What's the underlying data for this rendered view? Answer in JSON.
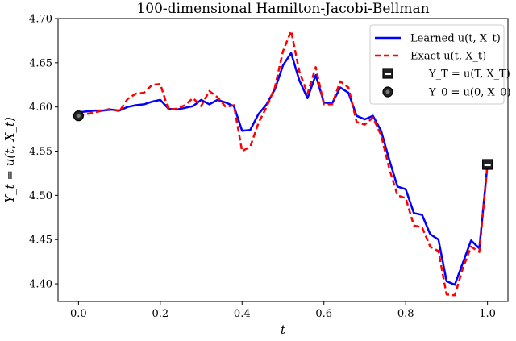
{
  "chart_data": {
    "type": "line",
    "title": "100-dimensional Hamilton-Jacobi-Bellman",
    "xlabel": "t",
    "ylabel": "Y_t = u(t, X_t)",
    "xlim": [
      -0.05,
      1.05
    ],
    "ylim": [
      4.38,
      4.7
    ],
    "xticks": [
      0.0,
      0.2,
      0.4,
      0.6,
      0.8,
      1.0
    ],
    "xtick_labels": [
      "0.0",
      "0.2",
      "0.4",
      "0.6",
      "0.8",
      "1.0"
    ],
    "yticks": [
      4.4,
      4.45,
      4.5,
      4.55,
      4.6,
      4.65,
      4.7
    ],
    "ytick_labels": [
      "4.40",
      "4.45",
      "4.50",
      "4.55",
      "4.60",
      "4.65",
      "4.70"
    ],
    "grid": false,
    "legend_position": "top-right",
    "series": [
      {
        "name": "Learned u(t, X_t)",
        "style": "solid",
        "color": "#0000ff",
        "x": [
          0.0,
          0.02,
          0.04,
          0.06,
          0.08,
          0.1,
          0.12,
          0.14,
          0.16,
          0.18,
          0.2,
          0.22,
          0.24,
          0.26,
          0.28,
          0.3,
          0.32,
          0.34,
          0.36,
          0.38,
          0.4,
          0.42,
          0.44,
          0.46,
          0.48,
          0.5,
          0.52,
          0.54,
          0.56,
          0.58,
          0.6,
          0.62,
          0.64,
          0.66,
          0.68,
          0.7,
          0.72,
          0.74,
          0.76,
          0.78,
          0.8,
          0.82,
          0.84,
          0.86,
          0.88,
          0.9,
          0.92,
          0.94,
          0.96,
          0.98,
          1.0
        ],
        "values": [
          4.594,
          4.595,
          4.596,
          4.596,
          4.597,
          4.596,
          4.6,
          4.602,
          4.603,
          4.606,
          4.608,
          4.598,
          4.597,
          4.599,
          4.601,
          4.608,
          4.603,
          4.608,
          4.605,
          4.601,
          4.573,
          4.574,
          4.592,
          4.603,
          4.62,
          4.647,
          4.661,
          4.63,
          4.61,
          4.636,
          4.605,
          4.604,
          4.622,
          4.616,
          4.59,
          4.586,
          4.59,
          4.573,
          4.54,
          4.51,
          4.507,
          4.48,
          4.478,
          4.456,
          4.45,
          4.403,
          4.399,
          4.424,
          4.449,
          4.44,
          4.535
        ]
      },
      {
        "name": "Exact u(t, X_t)",
        "style": "dashed",
        "color": "#ff0000",
        "x": [
          0.0,
          0.02,
          0.04,
          0.06,
          0.08,
          0.1,
          0.12,
          0.14,
          0.16,
          0.18,
          0.2,
          0.22,
          0.24,
          0.26,
          0.28,
          0.3,
          0.32,
          0.34,
          0.36,
          0.38,
          0.4,
          0.42,
          0.44,
          0.46,
          0.48,
          0.5,
          0.52,
          0.54,
          0.56,
          0.58,
          0.6,
          0.62,
          0.64,
          0.66,
          0.68,
          0.7,
          0.72,
          0.74,
          0.76,
          0.78,
          0.8,
          0.82,
          0.84,
          0.86,
          0.88,
          0.9,
          0.92,
          0.94,
          0.96,
          0.98,
          1.0
        ],
        "values": [
          4.59,
          4.592,
          4.594,
          4.596,
          4.598,
          4.595,
          4.609,
          4.615,
          4.616,
          4.625,
          4.626,
          4.597,
          4.598,
          4.602,
          4.61,
          4.601,
          4.618,
          4.611,
          4.6,
          4.602,
          4.55,
          4.555,
          4.582,
          4.6,
          4.622,
          4.663,
          4.686,
          4.64,
          4.615,
          4.645,
          4.603,
          4.603,
          4.629,
          4.622,
          4.583,
          4.58,
          4.588,
          4.568,
          4.53,
          4.5,
          4.497,
          4.466,
          4.464,
          4.442,
          4.437,
          4.388,
          4.387,
          4.418,
          4.442,
          4.436,
          4.535
        ]
      }
    ],
    "markers": [
      {
        "name": "Y_T = u(T, X_T)",
        "shape": "square",
        "x": 1.0,
        "y": 4.535
      },
      {
        "name": "Y_0 = u(0, X_0)",
        "shape": "circle",
        "x": 0.0,
        "y": 4.59
      }
    ]
  },
  "legend": {
    "learned": "Learned u(t, X_t)",
    "exact": "Exact u(t, X_t)",
    "terminal": "Y_T = u(T, X_T)",
    "initial": "Y_0 = u(0, X_0)"
  }
}
